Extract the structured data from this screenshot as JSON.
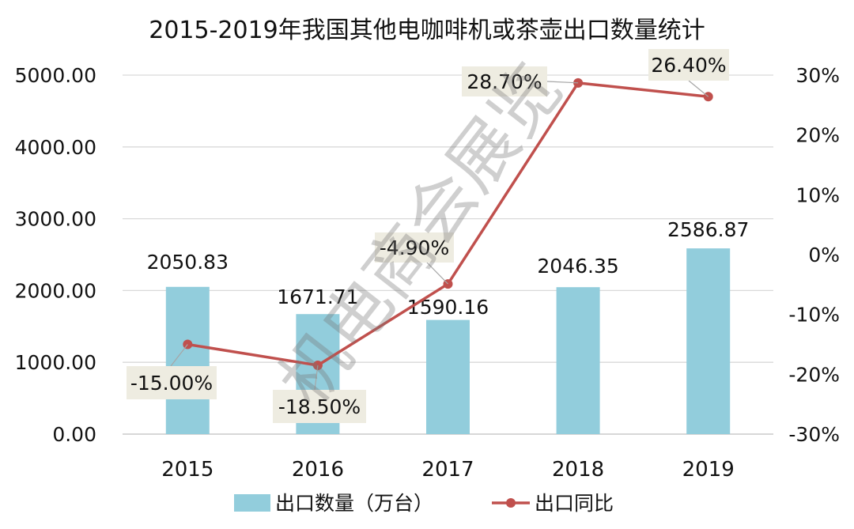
{
  "chart_data": {
    "type": "bar+line",
    "title": "2015-2019年我国其他电咖啡机或茶壶出口数量统计",
    "categories": [
      "2015",
      "2016",
      "2017",
      "2018",
      "2019"
    ],
    "series": [
      {
        "name": "出口数量（万台）",
        "type": "bar",
        "axis": "left",
        "values": [
          2050.83,
          1671.71,
          1590.16,
          2046.35,
          2586.87
        ],
        "labels": [
          "2050.83",
          "1671.71",
          "1590.16",
          "2046.35",
          "2586.87"
        ],
        "color": "#92CDDC"
      },
      {
        "name": "出口同比",
        "type": "line",
        "axis": "right",
        "values": [
          -15.0,
          -18.5,
          -4.9,
          28.7,
          26.4
        ],
        "labels": [
          "-15.00%",
          "-18.50%",
          "-4.90%",
          "28.70%",
          "26.40%"
        ],
        "color": "#C0504D"
      }
    ],
    "y_left": {
      "range": [
        0,
        5000
      ],
      "ticks": [
        0,
        1000,
        2000,
        3000,
        4000,
        5000
      ],
      "tick_labels": [
        "0.00",
        "1000.00",
        "2000.00",
        "3000.00",
        "4000.00",
        "5000.00"
      ]
    },
    "y_right": {
      "range": [
        -30,
        30
      ],
      "ticks": [
        -30,
        -20,
        -10,
        0,
        10,
        20,
        30
      ],
      "tick_labels": [
        "-30%",
        "-20%",
        "-10%",
        "0%",
        "10%",
        "20%",
        "30%"
      ]
    },
    "grid": true,
    "legend_position": "bottom",
    "label_box_color": "#EEECE1",
    "watermark": "机电商会展览"
  }
}
